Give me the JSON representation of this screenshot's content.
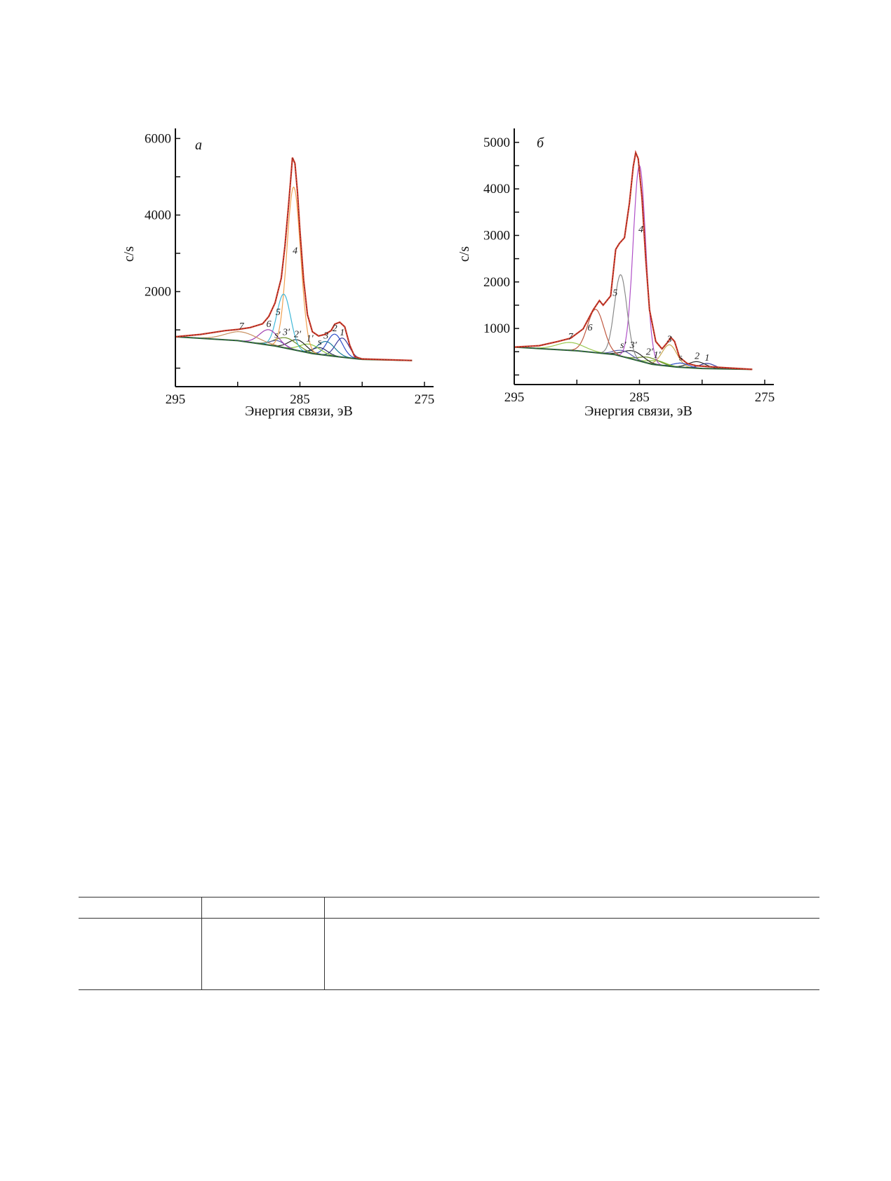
{
  "chart_data": [
    {
      "type": "line",
      "panel_label": "а",
      "xlabel": "Энергия связи, эВ",
      "ylabel": "c/s",
      "xlim": [
        295,
        275
      ],
      "ylim": [
        -300,
        6300
      ],
      "x_ticks": [
        295,
        285,
        275
      ],
      "y_ticks": [
        2000,
        4000,
        6000
      ],
      "grid": false,
      "baseline": [
        [
          295,
          820
        ],
        [
          290,
          720
        ],
        [
          287,
          580
        ],
        [
          284,
          380
        ],
        [
          282,
          300
        ],
        [
          280,
          230
        ],
        [
          276,
          200
        ]
      ],
      "envelope": [
        [
          295,
          820
        ],
        [
          293,
          880
        ],
        [
          291,
          980
        ],
        [
          290,
          1010
        ],
        [
          289,
          1060
        ],
        [
          288,
          1160
        ],
        [
          287.5,
          1350
        ],
        [
          287,
          1700
        ],
        [
          286.5,
          2350
        ],
        [
          286.2,
          3200
        ],
        [
          285.9,
          4300
        ],
        [
          285.7,
          5100
        ],
        [
          285.6,
          5500
        ],
        [
          285.4,
          5350
        ],
        [
          285.2,
          4600
        ],
        [
          285,
          3600
        ],
        [
          284.7,
          2300
        ],
        [
          284.4,
          1400
        ],
        [
          284,
          950
        ],
        [
          283.5,
          840
        ],
        [
          283,
          880
        ],
        [
          282.5,
          980
        ],
        [
          282.2,
          1150
        ],
        [
          281.8,
          1200
        ],
        [
          281.4,
          1080
        ],
        [
          281,
          600
        ],
        [
          280.6,
          300
        ],
        [
          280,
          240
        ],
        [
          278,
          220
        ],
        [
          276,
          200
        ]
      ],
      "series": [
        {
          "label": "1",
          "color": "#3a3a9a",
          "center": 281.6,
          "height": 500,
          "width": 0.55
        },
        {
          "label": "2",
          "color": "#3050c8",
          "center": 282.2,
          "height": 580,
          "width": 0.6
        },
        {
          "label": "3",
          "color": "#1c7c9c",
          "center": 282.9,
          "height": 360,
          "width": 0.7
        },
        {
          "label": "s",
          "color": "#303060",
          "center": 283.4,
          "height": 180,
          "width": 0.6
        },
        {
          "label": "1′",
          "color": "#8dc63f",
          "center": 284.2,
          "height": 230,
          "width": 0.8
        },
        {
          "label": "2′",
          "color": "#2a2a2a",
          "center": 285.2,
          "height": 280,
          "width": 0.7
        },
        {
          "label": "3′",
          "color": "#6b8e23",
          "center": 286.1,
          "height": 270,
          "width": 0.9
        },
        {
          "label": "s′",
          "color": "#5a5aa8",
          "center": 286.8,
          "height": 150,
          "width": 0.6
        },
        {
          "label": "4",
          "color": "#f0a050",
          "center": 285.5,
          "height": 4250,
          "width": 0.55
        },
        {
          "label": "5",
          "color": "#40b8d8",
          "center": 286.3,
          "height": 1400,
          "width": 0.55
        },
        {
          "label": "6",
          "color": "#a040b0",
          "center": 287.5,
          "height": 400,
          "width": 0.75
        },
        {
          "label": "7",
          "color": "#c89060",
          "center": 289.7,
          "height": 240,
          "width": 1.3
        }
      ]
    },
    {
      "type": "line",
      "panel_label": "б",
      "xlabel": "Энергия связи, эВ",
      "ylabel": "c/s",
      "xlim": [
        295,
        275
      ],
      "ylim": [
        -100,
        5300
      ],
      "x_ticks": [
        295,
        285,
        275
      ],
      "y_ticks": [
        1000,
        2000,
        3000,
        4000,
        5000
      ],
      "grid": false,
      "baseline": [
        [
          295,
          600
        ],
        [
          290,
          520
        ],
        [
          287,
          440
        ],
        [
          284,
          230
        ],
        [
          282,
          170
        ],
        [
          280,
          140
        ],
        [
          276,
          120
        ]
      ],
      "envelope": [
        [
          295,
          600
        ],
        [
          293,
          630
        ],
        [
          291.5,
          720
        ],
        [
          290.5,
          790
        ],
        [
          289.5,
          990
        ],
        [
          288.7,
          1400
        ],
        [
          288.2,
          1600
        ],
        [
          287.9,
          1500
        ],
        [
          287.3,
          1700
        ],
        [
          286.9,
          2700
        ],
        [
          286.6,
          2830
        ],
        [
          286.2,
          2950
        ],
        [
          285.8,
          3700
        ],
        [
          285.5,
          4480
        ],
        [
          285.3,
          4780
        ],
        [
          285.1,
          4650
        ],
        [
          284.8,
          3800
        ],
        [
          284.5,
          2500
        ],
        [
          284.2,
          1400
        ],
        [
          283.7,
          720
        ],
        [
          283.2,
          560
        ],
        [
          282.7,
          720
        ],
        [
          282.5,
          810
        ],
        [
          282.2,
          720
        ],
        [
          281.8,
          380
        ],
        [
          281.2,
          250
        ],
        [
          280.5,
          200
        ],
        [
          279,
          170
        ],
        [
          276,
          120
        ]
      ],
      "series": [
        {
          "label": "1",
          "color": "#3a3a9a",
          "center": 279.6,
          "height": 110,
          "width": 0.6
        },
        {
          "label": "2",
          "color": "#303030",
          "center": 280.4,
          "height": 140,
          "width": 0.7
        },
        {
          "label": "3",
          "color": "#c8a850",
          "center": 282.6,
          "height": 460,
          "width": 0.6
        },
        {
          "label": "s",
          "color": "#3050c8",
          "center": 281.7,
          "height": 90,
          "width": 0.6
        },
        {
          "label": "1′",
          "color": "#8dc63f",
          "center": 283.6,
          "height": 90,
          "width": 0.7
        },
        {
          "label": "2′",
          "color": "#6b8e23",
          "center": 284.2,
          "height": 130,
          "width": 0.8
        },
        {
          "label": "3′",
          "color": "#2a2a2a",
          "center": 285.5,
          "height": 180,
          "width": 0.8
        },
        {
          "label": "s′",
          "color": "#5a5aa8",
          "center": 286.3,
          "height": 130,
          "width": 0.7
        },
        {
          "label": "4",
          "color": "#b050c8",
          "center": 285.0,
          "height": 4200,
          "width": 0.5
        },
        {
          "label": "5",
          "color": "#8a8a8a",
          "center": 286.5,
          "height": 1750,
          "width": 0.5
        },
        {
          "label": "6",
          "color": "#c05840",
          "center": 288.5,
          "height": 930,
          "width": 0.65
        },
        {
          "label": "7",
          "color": "#9ac850",
          "center": 290.5,
          "height": 170,
          "width": 1.1
        }
      ]
    }
  ]
}
